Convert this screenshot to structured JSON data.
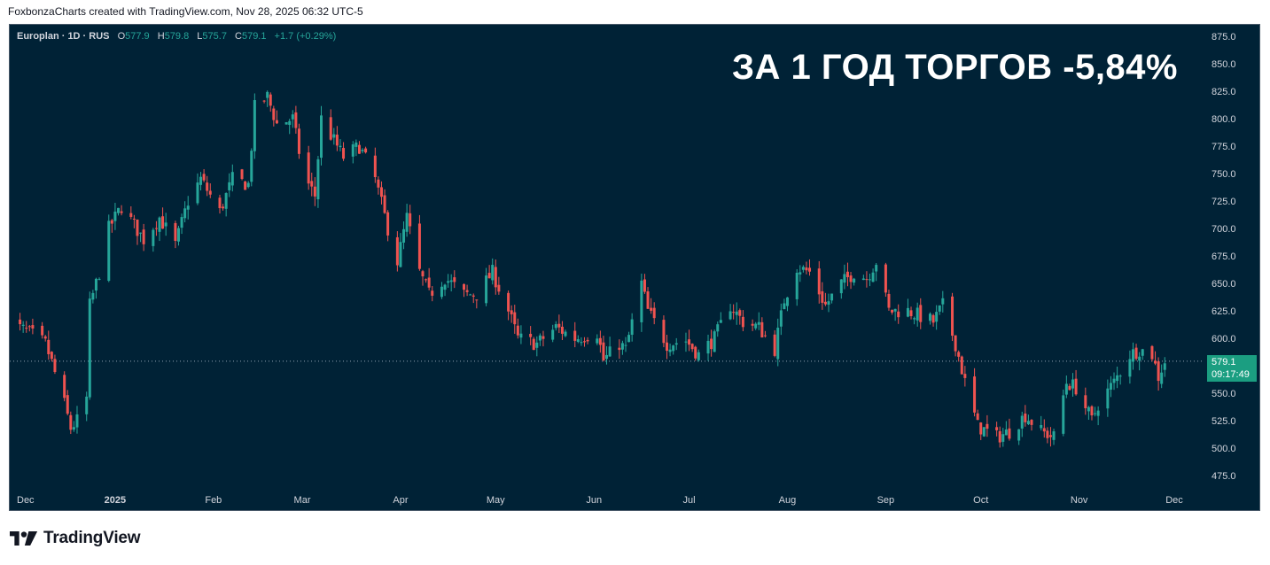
{
  "caption": "FoxbonzaCharts created with TradingView.com, Nov 28, 2025 06:32 UTC-5",
  "headline": "ЗА 1 ГОД ТОРГОВ -5,84%",
  "brand": "TradingView",
  "colors": {
    "background": "#002236",
    "up": "#26a69a",
    "down": "#ef5350",
    "axis_text": "#d1d4dc",
    "price_tag": "#1b9e81"
  },
  "legend": {
    "symbol": "Europlan · 1D · RUS",
    "o_label": "O",
    "o_value": "577.9",
    "h_label": "H",
    "h_value": "579.8",
    "l_label": "L",
    "l_value": "575.7",
    "c_label": "C",
    "c_value": "579.1",
    "change": "+1.7 (+0.29%)"
  },
  "price_tag": {
    "price": "579.1",
    "countdown": "09:17:49"
  },
  "chart_data": {
    "type": "candlestick",
    "ylim": [
      460,
      885
    ],
    "y_ticks": [
      475,
      500,
      525,
      550,
      575,
      600,
      625,
      650,
      675,
      700,
      725,
      750,
      775,
      800,
      825,
      850,
      875
    ],
    "x_tick_labels": [
      "Dec",
      "2025",
      "Feb",
      "Mar",
      "Apr",
      "May",
      "Jun",
      "Jul",
      "Aug",
      "Sep",
      "Oct",
      "Nov",
      "Dec"
    ],
    "last_price": 579.1,
    "close_path": [
      [
        "2024-11-28",
        615
      ],
      [
        "2024-12-05",
        605
      ],
      [
        "2024-12-10",
        595
      ],
      [
        "2024-12-12",
        578
      ],
      [
        "2024-12-16",
        540
      ],
      [
        "2024-12-18",
        518
      ],
      [
        "2024-12-20",
        525
      ],
      [
        "2024-12-23",
        545
      ],
      [
        "2024-12-24",
        630
      ],
      [
        "2024-12-27",
        660
      ],
      [
        "2024-12-30",
        700
      ],
      [
        "2025-01-03",
        720
      ],
      [
        "2025-01-10",
        690
      ],
      [
        "2025-01-15",
        710
      ],
      [
        "2025-01-20",
        685
      ],
      [
        "2025-01-24",
        725
      ],
      [
        "2025-01-28",
        745
      ],
      [
        "2025-02-03",
        715
      ],
      [
        "2025-02-07",
        745
      ],
      [
        "2025-02-12",
        740
      ],
      [
        "2025-02-14",
        810
      ],
      [
        "2025-02-18",
        820
      ],
      [
        "2025-02-21",
        795
      ],
      [
        "2025-02-26",
        800
      ],
      [
        "2025-02-28",
        770
      ],
      [
        "2025-03-03",
        740
      ],
      [
        "2025-03-05",
        730
      ],
      [
        "2025-03-07",
        800
      ],
      [
        "2025-03-11",
        780
      ],
      [
        "2025-03-14",
        765
      ],
      [
        "2025-03-19",
        775
      ],
      [
        "2025-03-24",
        745
      ],
      [
        "2025-03-28",
        700
      ],
      [
        "2025-03-31",
        670
      ],
      [
        "2025-04-03",
        710
      ],
      [
        "2025-04-07",
        660
      ],
      [
        "2025-04-10",
        640
      ],
      [
        "2025-04-15",
        655
      ],
      [
        "2025-04-21",
        640
      ],
      [
        "2025-04-25",
        640
      ],
      [
        "2025-04-30",
        660
      ],
      [
        "2025-05-05",
        625
      ],
      [
        "2025-05-08",
        600
      ],
      [
        "2025-05-14",
        595
      ],
      [
        "2025-05-20",
        610
      ],
      [
        "2025-05-26",
        600
      ],
      [
        "2025-06-02",
        605
      ],
      [
        "2025-06-04",
        580
      ],
      [
        "2025-06-09",
        595
      ],
      [
        "2025-06-11",
        590
      ],
      [
        "2025-06-16",
        650
      ],
      [
        "2025-06-18",
        625
      ],
      [
        "2025-06-24",
        595
      ],
      [
        "2025-06-30",
        598
      ],
      [
        "2025-07-04",
        585
      ],
      [
        "2025-07-09",
        600
      ],
      [
        "2025-07-14",
        630
      ],
      [
        "2025-07-18",
        615
      ],
      [
        "2025-07-23",
        610
      ],
      [
        "2025-07-28",
        590
      ],
      [
        "2025-07-31",
        635
      ],
      [
        "2025-08-04",
        665
      ],
      [
        "2025-08-08",
        660
      ],
      [
        "2025-08-13",
        630
      ],
      [
        "2025-08-18",
        650
      ],
      [
        "2025-08-22",
        660
      ],
      [
        "2025-08-26",
        655
      ],
      [
        "2025-08-29",
        670
      ],
      [
        "2025-09-02",
        625
      ],
      [
        "2025-09-08",
        625
      ],
      [
        "2025-09-12",
        620
      ],
      [
        "2025-09-16",
        615
      ],
      [
        "2025-09-19",
        630
      ],
      [
        "2025-09-23",
        595
      ],
      [
        "2025-09-26",
        560
      ],
      [
        "2025-09-30",
        520
      ],
      [
        "2025-10-06",
        510
      ],
      [
        "2025-10-10",
        515
      ],
      [
        "2025-10-15",
        530
      ],
      [
        "2025-10-20",
        515
      ],
      [
        "2025-10-24",
        510
      ],
      [
        "2025-10-28",
        560
      ],
      [
        "2025-10-31",
        555
      ],
      [
        "2025-11-05",
        525
      ],
      [
        "2025-11-07",
        540
      ],
      [
        "2025-11-12",
        560
      ],
      [
        "2025-11-17",
        585
      ],
      [
        "2025-11-20",
        590
      ],
      [
        "2025-11-24",
        585
      ],
      [
        "2025-11-26",
        565
      ],
      [
        "2025-11-28",
        579
      ]
    ]
  }
}
